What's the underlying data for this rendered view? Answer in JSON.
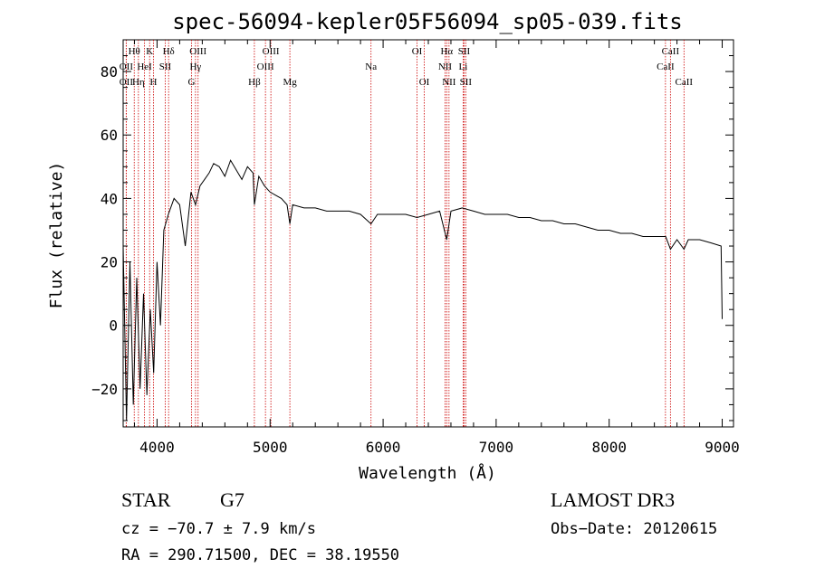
{
  "chart_data": {
    "type": "line",
    "title": "spec-56094-kepler05F56094_sp05-039.fits",
    "xlabel": "Wavelength (Å)",
    "ylabel": "Flux (relative)",
    "xlim": [
      3700,
      9100
    ],
    "ylim": [
      -32,
      90
    ],
    "xticks": [
      4000,
      5000,
      6000,
      7000,
      8000,
      9000
    ],
    "yticks": [
      -20,
      0,
      20,
      40,
      60,
      80
    ],
    "grid": false,
    "series": [
      {
        "name": "spectrum",
        "x": [
          3700,
          3730,
          3760,
          3790,
          3820,
          3850,
          3880,
          3910,
          3940,
          3970,
          4000,
          4030,
          4060,
          4100,
          4150,
          4200,
          4250,
          4300,
          4340,
          4380,
          4420,
          4460,
          4500,
          4550,
          4600,
          4650,
          4700,
          4750,
          4800,
          4850,
          4861,
          4900,
          4950,
          5000,
          5050,
          5100,
          5150,
          5175,
          5200,
          5300,
          5400,
          5500,
          5600,
          5700,
          5800,
          5893,
          5950,
          6000,
          6100,
          6200,
          6300,
          6400,
          6500,
          6563,
          6600,
          6700,
          6800,
          6900,
          7000,
          7100,
          7200,
          7300,
          7400,
          7500,
          7600,
          7700,
          7800,
          7900,
          8000,
          8100,
          8200,
          8300,
          8400,
          8500,
          8542,
          8600,
          8662,
          8700,
          8800,
          8900,
          8990,
          9000
        ],
        "y": [
          25,
          -30,
          20,
          -25,
          15,
          -20,
          10,
          -22,
          5,
          -15,
          20,
          0,
          30,
          35,
          40,
          38,
          25,
          42,
          38,
          44,
          46,
          48,
          51,
          50,
          47,
          52,
          49,
          46,
          50,
          48,
          38,
          47,
          44,
          42,
          41,
          40,
          38,
          32,
          38,
          37,
          37,
          36,
          36,
          36,
          35,
          32,
          35,
          35,
          35,
          35,
          34,
          35,
          36,
          27,
          36,
          37,
          36,
          35,
          35,
          35,
          34,
          34,
          33,
          33,
          32,
          32,
          31,
          30,
          30,
          29,
          29,
          28,
          28,
          28,
          24,
          27,
          24,
          27,
          27,
          26,
          25,
          2
        ]
      }
    ],
    "lines": [
      {
        "label": "Hθ",
        "wave": 3798,
        "row": 1
      },
      {
        "label": "OII",
        "wave": 3727,
        "row": 2
      },
      {
        "label": "OII",
        "wave": 3727,
        "row": 3
      },
      {
        "label": "Hη",
        "wave": 3835,
        "row": 3
      },
      {
        "label": "HeI",
        "wave": 3889,
        "row": 2
      },
      {
        "label": "K",
        "wave": 3934,
        "row": 1
      },
      {
        "label": "SII",
        "wave": 4072,
        "row": 2
      },
      {
        "label": "H",
        "wave": 3968,
        "row": 3
      },
      {
        "label": "Hδ",
        "wave": 4102,
        "row": 1
      },
      {
        "label": "OIII",
        "wave": 4363,
        "row": 1
      },
      {
        "label": "Hγ",
        "wave": 4340,
        "row": 2
      },
      {
        "label": "G",
        "wave": 4305,
        "row": 3
      },
      {
        "label": "OIII",
        "wave": 5007,
        "row": 1
      },
      {
        "label": "OIII",
        "wave": 4959,
        "row": 2
      },
      {
        "label": "Hβ",
        "wave": 4861,
        "row": 3
      },
      {
        "label": "Mg",
        "wave": 5175,
        "row": 3
      },
      {
        "label": "Na",
        "wave": 5893,
        "row": 2
      },
      {
        "label": "OI",
        "wave": 6300,
        "row": 1
      },
      {
        "label": "OI",
        "wave": 6364,
        "row": 3
      },
      {
        "label": "Hα",
        "wave": 6563,
        "row": 1
      },
      {
        "label": "SII",
        "wave": 6716,
        "row": 1
      },
      {
        "label": "NII",
        "wave": 6548,
        "row": 2
      },
      {
        "label": "Li",
        "wave": 6708,
        "row": 2
      },
      {
        "label": "NII",
        "wave": 6583,
        "row": 3
      },
      {
        "label": "SII",
        "wave": 6731,
        "row": 3
      },
      {
        "label": "CaII",
        "wave": 8542,
        "row": 1
      },
      {
        "label": "CaII",
        "wave": 8498,
        "row": 2
      },
      {
        "label": "CaII",
        "wave": 8662,
        "row": 3
      }
    ]
  },
  "info": {
    "class": "STAR",
    "subclass": "G7",
    "survey": "LAMOST DR3",
    "redshift": "cz = −70.7 ± 7.9 km/s",
    "obs_date": "Obs−Date: 20120615",
    "coords": "RA = 290.71500, DEC =  38.19550"
  },
  "colors": {
    "spectrum": "#000000",
    "line_marker": "#cc0000",
    "axis": "#000000"
  }
}
